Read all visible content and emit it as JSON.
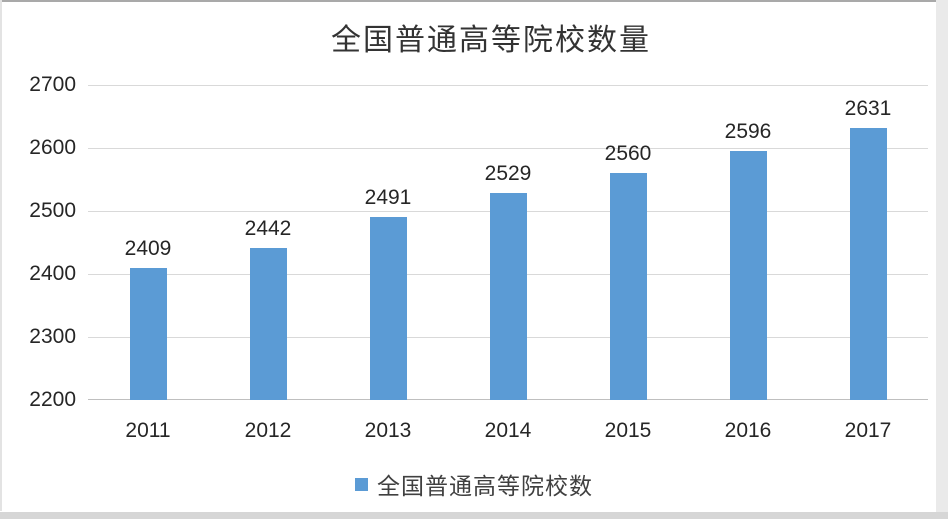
{
  "chart_data": {
    "type": "bar",
    "title": "全国普通高等院校数量",
    "categories": [
      "2011",
      "2012",
      "2013",
      "2014",
      "2015",
      "2016",
      "2017"
    ],
    "series": [
      {
        "name": "全国普通高等院校数",
        "values": [
          2409,
          2442,
          2491,
          2529,
          2560,
          2596,
          2631
        ]
      }
    ],
    "data_labels": [
      2409,
      2442,
      2491,
      2529,
      2560,
      2596,
      2631
    ],
    "xlabel": "",
    "ylabel": "",
    "ylim": [
      2200,
      2700
    ],
    "yticks": [
      2700,
      2600,
      2500,
      2400,
      2300,
      2200
    ],
    "grid": true,
    "legend_position": "bottom",
    "colors": {
      "bar": "#5B9BD5",
      "gridline": "#d9d9d9",
      "axis_line": "#bfbfbf",
      "text": "#262626",
      "title_text": "#333333"
    }
  }
}
